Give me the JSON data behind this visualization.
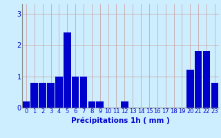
{
  "hours": [
    0,
    1,
    2,
    3,
    4,
    5,
    6,
    7,
    8,
    9,
    10,
    11,
    12,
    13,
    14,
    15,
    16,
    17,
    18,
    19,
    20,
    21,
    22,
    23
  ],
  "values": [
    0.2,
    0.8,
    0.8,
    0.8,
    1.0,
    2.4,
    1.0,
    1.0,
    0.2,
    0.2,
    0.0,
    0.0,
    0.2,
    0.0,
    0.0,
    0.0,
    0.0,
    0.0,
    0.0,
    0.0,
    1.2,
    1.8,
    1.8,
    0.8
  ],
  "bar_color": "#0000cc",
  "background_color": "#cceeff",
  "grid_color": "#cc9999",
  "xlabel": "Précipitations 1h ( mm )",
  "xlabel_color": "#0000cc",
  "xlabel_fontsize": 7.5,
  "tick_color": "#0000cc",
  "tick_fontsize": 6,
  "ylim": [
    0,
    3.3
  ],
  "yticks": [
    0,
    1,
    2,
    3
  ]
}
